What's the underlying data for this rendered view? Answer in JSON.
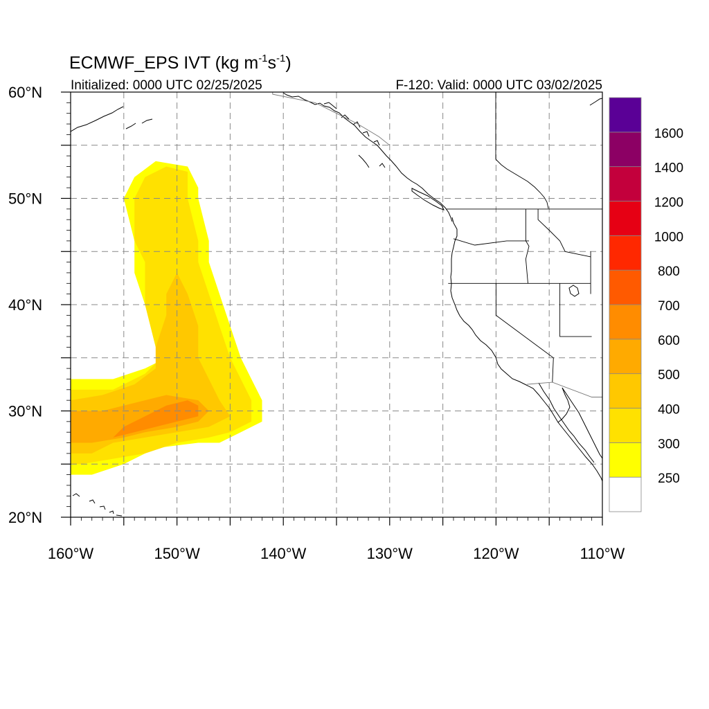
{
  "title": {
    "main": "ECMWF_EPS IVT (kg m",
    "sup1": "-1",
    "mid": "s",
    "sup2": "-1",
    "end": ")"
  },
  "init_label": "Initialized: 0000 UTC 02/25/2025",
  "valid_label": "F-120: Valid: 0000 UTC 03/02/2025",
  "map": {
    "lon_range": [
      -160,
      -110
    ],
    "lat_range": [
      20,
      60
    ],
    "lon_ticks": [
      {
        "value": -160,
        "label": "160°W"
      },
      {
        "value": -150,
        "label": "150°W"
      },
      {
        "value": -140,
        "label": "140°W"
      },
      {
        "value": -130,
        "label": "130°W"
      },
      {
        "value": -120,
        "label": "120°W"
      },
      {
        "value": -110,
        "label": "110°W"
      }
    ],
    "lat_ticks": [
      {
        "value": 20,
        "label": "20°N"
      },
      {
        "value": 30,
        "label": "30°N"
      },
      {
        "value": 40,
        "label": "40°N"
      },
      {
        "value": 50,
        "label": "50°N"
      },
      {
        "value": 60,
        "label": "60°N"
      }
    ],
    "gridlines": "dashed every 5°"
  },
  "colorbar": {
    "levels": [
      250,
      300,
      400,
      500,
      600,
      700,
      800,
      1000,
      1200,
      1400,
      1600
    ],
    "labels": [
      "250",
      "300",
      "400",
      "500",
      "600",
      "700",
      "800",
      "1000",
      "1200",
      "1400",
      "1600"
    ],
    "colors": [
      "#ffffff",
      "#ffff00",
      "#ffe100",
      "#ffc800",
      "#ffaa00",
      "#ff8c00",
      "#ff5a00",
      "#ff2800",
      "#e60014",
      "#c3003c",
      "#8c0064",
      "#5a0096"
    ]
  },
  "ivt_regions": [
    {
      "level": 250,
      "color": "#ffff00",
      "outline": [
        [
          -160,
          25
        ],
        [
          -160,
          33
        ],
        [
          -156,
          33
        ],
        [
          -153,
          34
        ],
        [
          -151,
          35
        ],
        [
          -152,
          36
        ],
        [
          -153,
          40
        ],
        [
          -154,
          43
        ],
        [
          -154,
          46
        ],
        [
          -155,
          50
        ],
        [
          -154,
          52
        ],
        [
          -152,
          53.5
        ],
        [
          -149,
          53
        ],
        [
          -148,
          51
        ],
        [
          -148,
          50
        ],
        [
          -147,
          46
        ],
        [
          -147,
          44
        ],
        [
          -146,
          41
        ],
        [
          -145,
          38
        ],
        [
          -144,
          35
        ],
        [
          -143,
          33
        ],
        [
          -142,
          31
        ],
        [
          -142,
          29
        ],
        [
          -144,
          28
        ],
        [
          -146,
          27
        ],
        [
          -148,
          27
        ],
        [
          -152,
          26.5
        ],
        [
          -155,
          25
        ],
        [
          -158,
          24
        ],
        [
          -160,
          24
        ]
      ]
    },
    {
      "level": 300,
      "color": "#ffe100",
      "outline": [
        [
          -160,
          26
        ],
        [
          -160,
          32
        ],
        [
          -156,
          32
        ],
        [
          -153,
          33.5
        ],
        [
          -152,
          34.5
        ],
        [
          -152,
          36
        ],
        [
          -153,
          40
        ],
        [
          -153,
          44
        ],
        [
          -154,
          46
        ],
        [
          -154,
          50
        ],
        [
          -153,
          52
        ],
        [
          -151,
          53
        ],
        [
          -149,
          52.5
        ],
        [
          -149,
          50
        ],
        [
          -148,
          46
        ],
        [
          -148,
          44
        ],
        [
          -147,
          41
        ],
        [
          -146,
          38
        ],
        [
          -145,
          35
        ],
        [
          -144,
          33
        ],
        [
          -143,
          31
        ],
        [
          -143,
          29
        ],
        [
          -145,
          28
        ],
        [
          -147,
          27.5
        ],
        [
          -150,
          27
        ],
        [
          -153,
          26
        ],
        [
          -156,
          25.5
        ],
        [
          -159,
          25
        ],
        [
          -160,
          25
        ]
      ]
    },
    {
      "level": 400,
      "color": "#ffc800",
      "outline": [
        [
          -160,
          27
        ],
        [
          -160,
          31
        ],
        [
          -157,
          31.5
        ],
        [
          -154,
          32.5
        ],
        [
          -152,
          34
        ],
        [
          -152,
          36
        ],
        [
          -151,
          39
        ],
        [
          -151,
          41
        ],
        [
          -150,
          43
        ],
        [
          -149,
          41
        ],
        [
          -148,
          38
        ],
        [
          -148,
          35
        ],
        [
          -147,
          33
        ],
        [
          -146,
          31
        ],
        [
          -145,
          29.5
        ],
        [
          -147,
          28.5
        ],
        [
          -150,
          28
        ],
        [
          -153,
          27.5
        ],
        [
          -156,
          27
        ],
        [
          -158,
          26
        ],
        [
          -160,
          26
        ]
      ]
    },
    {
      "level": 500,
      "color": "#ffaa00",
      "outline": [
        [
          -160,
          27
        ],
        [
          -160,
          30
        ],
        [
          -157,
          30
        ],
        [
          -155,
          30.5
        ],
        [
          -153,
          31
        ],
        [
          -151,
          31.5
        ],
        [
          -148,
          31
        ],
        [
          -147,
          30
        ],
        [
          -148,
          29
        ],
        [
          -150,
          28.5
        ],
        [
          -153,
          28
        ],
        [
          -155,
          27.5
        ],
        [
          -158,
          27
        ],
        [
          -160,
          27
        ]
      ]
    },
    {
      "level": 600,
      "color": "#ff8c00",
      "outline": [
        [
          -156,
          27.5
        ],
        [
          -155,
          28.5
        ],
        [
          -153,
          29.5
        ],
        [
          -151,
          30.5
        ],
        [
          -149,
          31
        ],
        [
          -148,
          30.5
        ],
        [
          -148,
          29.5
        ],
        [
          -150,
          29
        ],
        [
          -152,
          28.5
        ],
        [
          -154,
          28
        ],
        [
          -156,
          27.5
        ]
      ]
    }
  ],
  "lower48_state_lines": [
    [
      [
        -124.5,
        42
      ],
      [
        -120,
        42
      ],
      [
        -111.1,
        42
      ]
    ],
    [
      [
        -120,
        42
      ],
      [
        -120,
        39
      ],
      [
        -114.6,
        35
      ],
      [
        -114.7,
        32.7
      ]
    ],
    [
      [
        -117.2,
        49
      ],
      [
        -117.2,
        46
      ],
      [
        -116.9,
        45.5
      ],
      [
        -117.2,
        44.3
      ],
      [
        -117,
        42
      ]
    ],
    [
      [
        -124,
        46.2
      ],
      [
        -122,
        45.6
      ],
      [
        -119,
        46
      ],
      [
        -116.9,
        46
      ]
    ],
    [
      [
        -114,
        42
      ],
      [
        -114,
        37
      ],
      [
        -111,
        37
      ]
    ],
    [
      [
        -116.05,
        49
      ],
      [
        -116.05,
        48
      ],
      [
        -115,
        47
      ],
      [
        -114,
        46
      ],
      [
        -113.5,
        45
      ],
      [
        -111.1,
        44.5
      ]
    ],
    [
      [
        -111.1,
        45
      ],
      [
        -111.1,
        41
      ]
    ],
    [
      [
        -124.7,
        49
      ],
      [
        -110,
        49
      ]
    ]
  ],
  "international_lines": [
    [
      [
        -117.1,
        32.5
      ],
      [
        -114.7,
        32.7
      ],
      [
        -111,
        31.3
      ],
      [
        -110,
        31.3
      ]
    ],
    [
      [
        -141,
        60
      ],
      [
        -141,
        59.8
      ],
      [
        -137,
        59
      ],
      [
        -135,
        58
      ],
      [
        -133,
        57
      ],
      [
        -131,
        55.8
      ],
      [
        -130,
        55
      ]
    ]
  ]
}
